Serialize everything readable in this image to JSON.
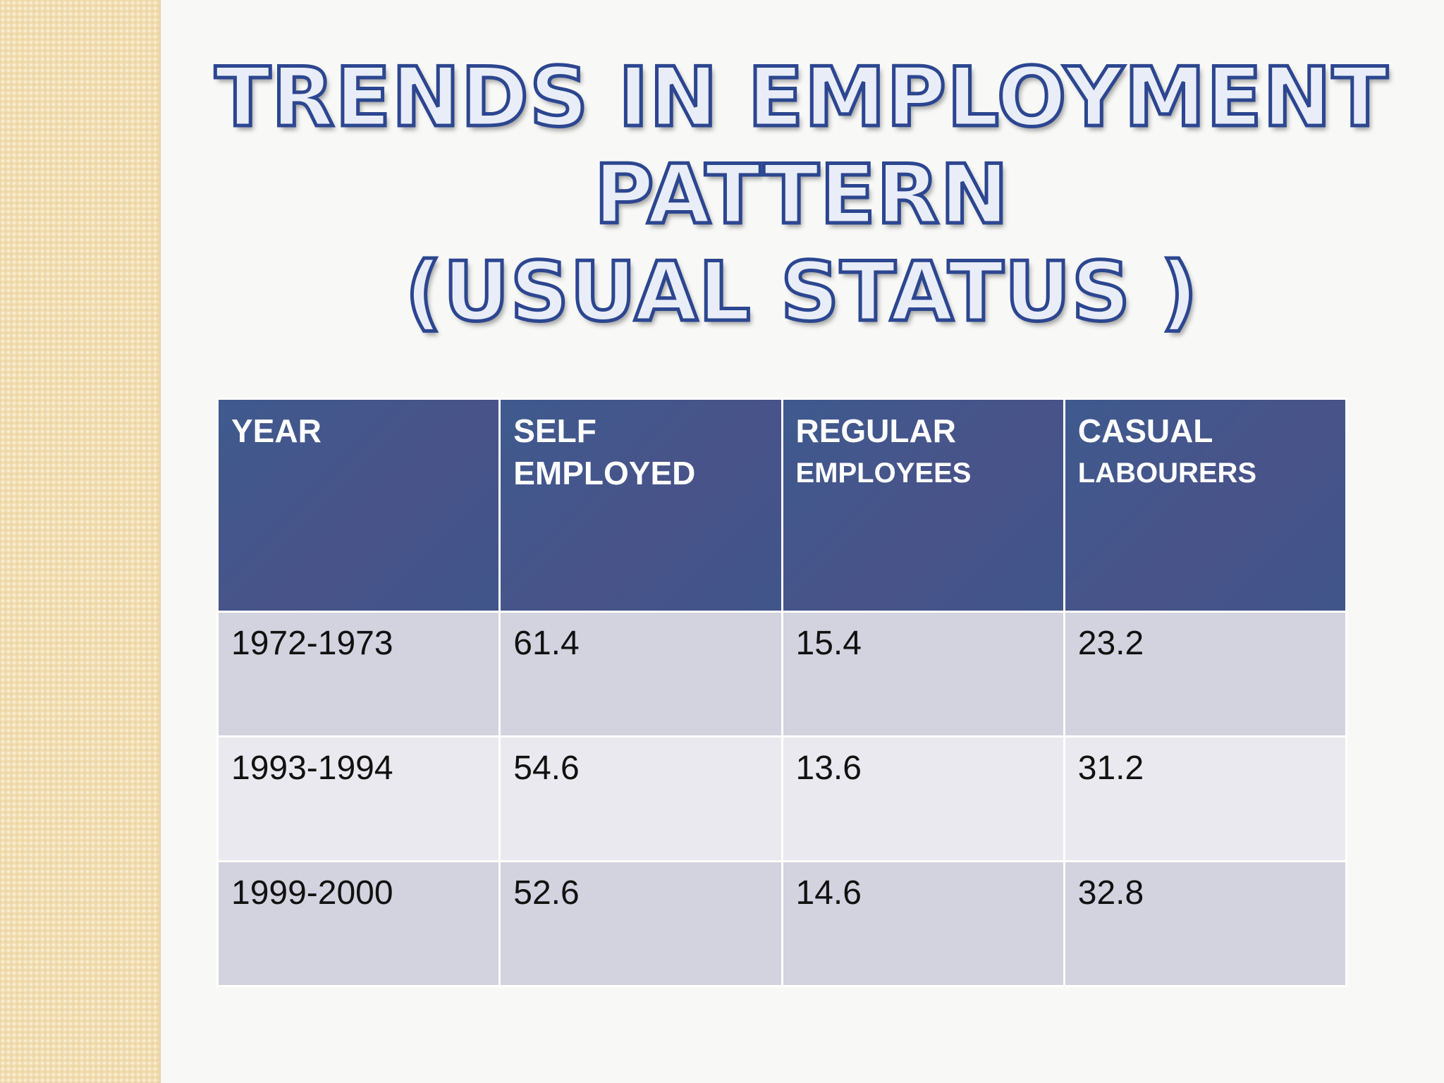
{
  "title": {
    "line1": "TRENDS IN EMPLOYMENT",
    "line2": "PATTERN",
    "line3": "(USUAL STATUS )"
  },
  "table": {
    "headers": [
      {
        "line1": "YEAR",
        "line2": ""
      },
      {
        "line1": "SELF",
        "line2": "EMPLOYED"
      },
      {
        "line1": "REGULAR",
        "line2": "EMPLOYEES"
      },
      {
        "line1": "CASUAL",
        "line2": "LABOURERS"
      }
    ],
    "rows": [
      [
        "1972-1973",
        "61.4",
        "15.4",
        "23.2"
      ],
      [
        "1993-1994",
        "54.6",
        "13.6",
        "31.2"
      ],
      [
        "1999-2000",
        "52.6",
        "14.6",
        "32.8"
      ]
    ]
  },
  "colors": {
    "title_outline": "#2c4690",
    "header_bg": "#485389",
    "row_odd_bg": "#d3d2df",
    "row_even_bg": "#e9e9ef",
    "side_strip": "#f1ddb0"
  }
}
